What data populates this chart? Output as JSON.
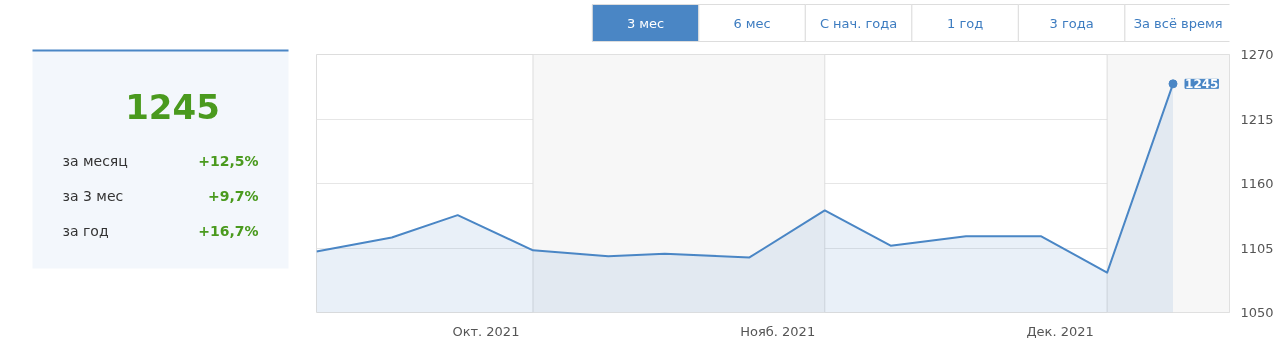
{
  "chart_data": [
    {
      "type": "other",
      "title": "1245",
      "annotations": [
        "за месяц",
        "+12,5%",
        "за 3 мес",
        "+9,7%",
        "за год",
        "+16,7%"
      ]
    },
    {
      "type": "area",
      "annotations": [
        "3 мес",
        "6 мес",
        "С нач. года",
        "1 год",
        "3 года",
        "За всё время"
      ],
      "x": [
        "2021-09-08",
        "2021-09-16",
        "2021-09-23",
        "2021-10-01",
        "2021-10-09",
        "2021-10-15",
        "2021-10-24",
        "2021-11-01",
        "2021-11-08",
        "2021-11-16",
        "2021-11-24",
        "2021-12-01",
        "2021-12-08"
      ],
      "series": [
        {
          "color": "#4a86c5",
          "values": [
            1102,
            1114,
            1133,
            1103,
            1098,
            1100,
            1097,
            1137,
            1107,
            1115,
            1115,
            1084,
            1245
          ],
          "value_labels": [
            null,
            null,
            null,
            null,
            null,
            null,
            null,
            null,
            null,
            null,
            null,
            null,
            "1245"
          ]
        }
      ],
      "xlim": [
        "2021-09-08",
        "2021-12-14"
      ],
      "xticks": [
        {
          "value": "2021-09-26",
          "label": "Окт. 2021"
        },
        {
          "value": "2021-10-27",
          "label": "Нояб. 2021"
        },
        {
          "value": "2021-11-26",
          "label": "Дек. 2021"
        }
      ],
      "ylim": [
        1050,
        1270
      ],
      "yticks": [
        1050,
        1105,
        1160,
        1215,
        1270
      ],
      "bands": [
        {
          "axis": "x",
          "from": "2021-10-01",
          "to": "2021-11-01",
          "color": "#f7f7f7"
        },
        {
          "axis": "x",
          "from": "2021-12-01",
          "to": "2021-12-14",
          "color": "#f7f7f7"
        }
      ],
      "grid": true
    }
  ]
}
